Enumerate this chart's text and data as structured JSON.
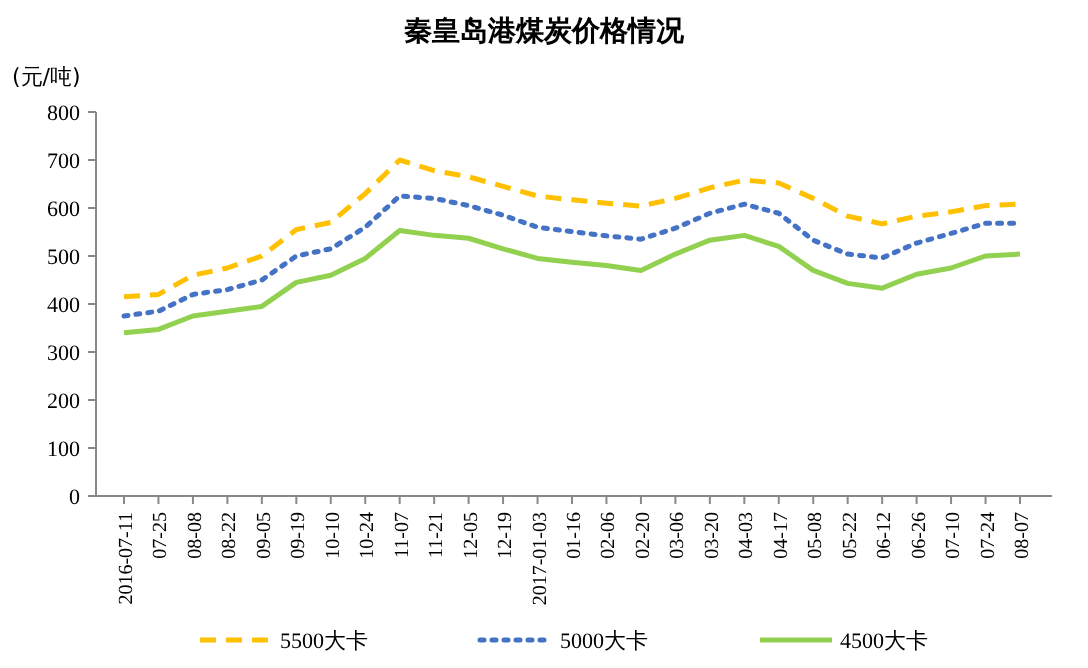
{
  "chart_data": {
    "type": "line",
    "title": "秦皇岛港煤炭价格情况",
    "ylabel": "(元/吨)",
    "categories": [
      "2016-07-11",
      "07-25",
      "08-08",
      "08-22",
      "09-05",
      "09-19",
      "10-10",
      "10-24",
      "11-07",
      "11-21",
      "12-05",
      "12-19",
      "2017-01-03",
      "01-16",
      "02-06",
      "02-20",
      "03-06",
      "03-20",
      "04-03",
      "04-17",
      "05-08",
      "05-22",
      "06-12",
      "06-26",
      "07-10",
      "07-24",
      "08-07"
    ],
    "series": [
      {
        "name": "5500大卡",
        "color": "#ffc000",
        "line_style": "dashed",
        "values": [
          415,
          420,
          460,
          475,
          500,
          555,
          570,
          630,
          700,
          678,
          665,
          645,
          625,
          617,
          610,
          604,
          620,
          642,
          658,
          652,
          620,
          583,
          567,
          583,
          592,
          605,
          608
        ]
      },
      {
        "name": "5000大卡",
        "color": "#4472c4",
        "line_style": "dotted",
        "values": [
          375,
          385,
          420,
          430,
          450,
          500,
          515,
          560,
          625,
          620,
          605,
          585,
          560,
          551,
          542,
          535,
          558,
          589,
          608,
          589,
          533,
          504,
          496,
          527,
          547,
          568,
          568
        ]
      },
      {
        "name": "4500大卡",
        "color": "#92d050",
        "line_style": "solid",
        "values": [
          340,
          347,
          375,
          385,
          395,
          445,
          460,
          495,
          553,
          543,
          537,
          515,
          495,
          487,
          480,
          470,
          504,
          533,
          543,
          520,
          470,
          443,
          433,
          462,
          475,
          500,
          504
        ]
      }
    ],
    "ylim": [
      0,
      800
    ],
    "yticks": [
      0,
      100,
      200,
      300,
      400,
      500,
      600,
      700,
      800
    ],
    "grid": false,
    "legend": "bottom"
  }
}
